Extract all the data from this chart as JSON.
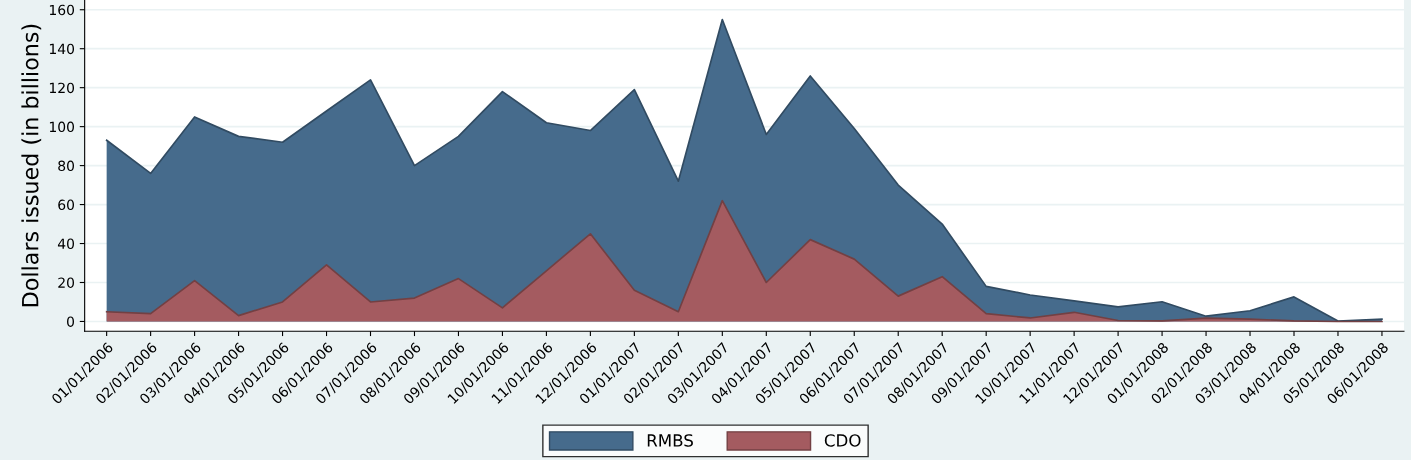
{
  "chart_data": {
    "type": "area",
    "ylabel": "Dollars issued (in billions)",
    "categories": [
      "01/01/2006",
      "02/01/2006",
      "03/01/2006",
      "04/01/2006",
      "05/01/2006",
      "06/01/2006",
      "07/01/2006",
      "08/01/2006",
      "09/01/2006",
      "10/01/2006",
      "11/01/2006",
      "12/01/2006",
      "01/01/2007",
      "02/01/2007",
      "03/01/2007",
      "04/01/2007",
      "05/01/2007",
      "06/01/2007",
      "07/01/2007",
      "08/01/2007",
      "09/01/2007",
      "10/01/2007",
      "11/01/2007",
      "12/01/2007",
      "01/01/2008",
      "02/01/2008",
      "03/01/2008",
      "04/01/2008",
      "05/01/2008",
      "06/01/2008"
    ],
    "series": [
      {
        "name": "RMBS",
        "color": "#466b8c",
        "values": [
          93,
          76,
          105,
          95,
          92,
          108,
          124,
          80,
          95,
          118,
          102,
          98,
          119,
          72,
          155,
          96,
          126,
          99,
          70,
          50,
          18,
          13.6,
          10.6,
          7.5,
          10.1,
          2.7,
          5.5,
          12.6,
          0.2,
          1.2
        ]
      },
      {
        "name": "CDO",
        "color": "#a45b60",
        "values": [
          5,
          4,
          21,
          3,
          10,
          29,
          10,
          12,
          22,
          7,
          26,
          45,
          16,
          5,
          62,
          20,
          42,
          32,
          13,
          23,
          4,
          1.8,
          4.7,
          0.5,
          0.3,
          1.7,
          1.2,
          0.3,
          0,
          0
        ]
      }
    ],
    "ylim": [
      -5,
      165
    ],
    "yticks": [
      0,
      20,
      40,
      60,
      80,
      100,
      120,
      140,
      160
    ],
    "grid": "y",
    "legend": "bottom"
  }
}
